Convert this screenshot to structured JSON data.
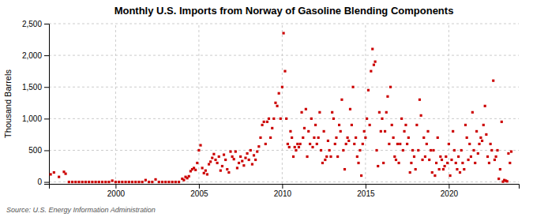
{
  "chart_data": {
    "type": "scatter",
    "title": "Monthly U.S. Imports from Norway of Gasoline Blending Components",
    "ylabel": "Thousand Barrels",
    "annotations": [
      "Source: U.S. Energy Information Administration"
    ],
    "color": "#cc0000",
    "marker": "square",
    "grid": true,
    "xlim": [
      1996.0,
      2024.2
    ],
    "ylim": [
      -30,
      2500
    ],
    "xticks": [
      2000,
      2005,
      2010,
      2015,
      2020
    ],
    "yticks": [
      0,
      500,
      {
        "value": 1000,
        "label": "1,000"
      },
      {
        "value": 1500,
        "label": "1,500"
      },
      {
        "value": 2000,
        "label": "2,000"
      },
      {
        "value": 2500,
        "label": "2,500"
      }
    ],
    "x": [
      1996.1,
      1996.3,
      1996.6,
      1996.9,
      1997.0,
      1997.2,
      1997.4,
      1997.6,
      1997.8,
      1998.0,
      1998.2,
      1998.4,
      1998.6,
      1998.8,
      1999.0,
      1999.2,
      1999.4,
      1999.6,
      1999.8,
      2000.0,
      2000.2,
      2000.4,
      2000.6,
      2000.8,
      2001.0,
      2001.2,
      2001.4,
      2001.6,
      2001.8,
      2002.0,
      2002.2,
      2002.4,
      2002.6,
      2002.8,
      2003.0,
      2003.2,
      2003.4,
      2003.6,
      2003.8,
      2004.0,
      2004.1,
      2004.2,
      2004.3,
      2004.4,
      2004.5,
      2004.6,
      2004.7,
      2004.8,
      2004.9,
      2005.0,
      2005.1,
      2005.2,
      2005.3,
      2005.4,
      2005.5,
      2005.6,
      2005.7,
      2005.8,
      2005.9,
      2006.0,
      2006.1,
      2006.2,
      2006.3,
      2006.4,
      2006.5,
      2006.6,
      2006.7,
      2006.8,
      2006.9,
      2007.0,
      2007.1,
      2007.2,
      2007.3,
      2007.4,
      2007.5,
      2007.6,
      2007.7,
      2007.8,
      2007.9,
      2008.0,
      2008.1,
      2008.2,
      2008.3,
      2008.4,
      2008.5,
      2008.6,
      2008.7,
      2008.8,
      2008.9,
      2009.0,
      2009.1,
      2009.2,
      2009.3,
      2009.4,
      2009.5,
      2009.6,
      2009.7,
      2009.8,
      2009.9,
      2010.0,
      2010.08,
      2010.17,
      2010.25,
      2010.33,
      2010.42,
      2010.5,
      2010.58,
      2010.67,
      2010.75,
      2010.83,
      2010.92,
      2011.0,
      2011.08,
      2011.17,
      2011.25,
      2011.33,
      2011.42,
      2011.5,
      2011.58,
      2011.67,
      2011.75,
      2011.83,
      2011.92,
      2012.0,
      2012.08,
      2012.17,
      2012.25,
      2012.33,
      2012.42,
      2012.5,
      2012.58,
      2012.67,
      2012.75,
      2012.83,
      2012.92,
      2013.0,
      2013.08,
      2013.17,
      2013.25,
      2013.33,
      2013.42,
      2013.5,
      2013.58,
      2013.67,
      2013.75,
      2013.83,
      2013.92,
      2014.0,
      2014.08,
      2014.17,
      2014.25,
      2014.33,
      2014.42,
      2014.5,
      2014.58,
      2014.67,
      2014.75,
      2014.83,
      2014.92,
      2015.0,
      2015.08,
      2015.17,
      2015.25,
      2015.33,
      2015.42,
      2015.5,
      2015.58,
      2015.67,
      2015.75,
      2015.83,
      2015.92,
      2016.0,
      2016.08,
      2016.17,
      2016.25,
      2016.33,
      2016.42,
      2016.5,
      2016.58,
      2016.67,
      2016.75,
      2016.83,
      2016.92,
      2017.0,
      2017.08,
      2017.17,
      2017.25,
      2017.33,
      2017.42,
      2017.5,
      2017.58,
      2017.67,
      2017.75,
      2017.83,
      2017.92,
      2018.0,
      2018.08,
      2018.17,
      2018.25,
      2018.33,
      2018.42,
      2018.5,
      2018.58,
      2018.67,
      2018.75,
      2018.83,
      2018.92,
      2019.0,
      2019.08,
      2019.17,
      2019.25,
      2019.33,
      2019.42,
      2019.5,
      2019.58,
      2019.67,
      2019.75,
      2019.83,
      2019.92,
      2020.0,
      2020.08,
      2020.17,
      2020.25,
      2020.33,
      2020.42,
      2020.5,
      2020.58,
      2020.67,
      2020.75,
      2020.83,
      2020.92,
      2021.0,
      2021.08,
      2021.17,
      2021.25,
      2021.33,
      2021.42,
      2021.5,
      2021.58,
      2021.67,
      2021.75,
      2021.83,
      2021.92,
      2022.0,
      2022.08,
      2022.17,
      2022.25,
      2022.33,
      2022.42,
      2022.5,
      2022.58,
      2022.67,
      2022.75,
      2022.83,
      2022.92,
      2023.0,
      2023.08,
      2023.17,
      2023.25,
      2023.33,
      2023.42,
      2023.5,
      2023.58,
      2023.67,
      2023.75
    ],
    "values": [
      120,
      150,
      80,
      160,
      130,
      0,
      0,
      0,
      0,
      0,
      0,
      0,
      0,
      0,
      0,
      0,
      0,
      0,
      20,
      0,
      0,
      0,
      0,
      0,
      0,
      0,
      0,
      0,
      30,
      0,
      0,
      40,
      0,
      0,
      0,
      0,
      0,
      0,
      0,
      50,
      30,
      80,
      60,
      90,
      170,
      200,
      220,
      190,
      300,
      500,
      580,
      220,
      140,
      180,
      120,
      280,
      320,
      380,
      440,
      350,
      300,
      400,
      180,
      250,
      430,
      350,
      200,
      150,
      480,
      400,
      360,
      480,
      220,
      300,
      400,
      330,
      260,
      380,
      450,
      350,
      500,
      280,
      420,
      350,
      480,
      560,
      700,
      900,
      950,
      600,
      950,
      1000,
      700,
      850,
      1000,
      1250,
      1200,
      1400,
      1000,
      1500,
      2350,
      1750,
      1000,
      600,
      550,
      800,
      700,
      400,
      550,
      500,
      600,
      550,
      600,
      1100,
      700,
      850,
      1150,
      400,
      800,
      600,
      1000,
      550,
      700,
      900,
      600,
      700,
      1100,
      500,
      300,
      800,
      350,
      400,
      650,
      500,
      400,
      1100,
      1000,
      600,
      700,
      400,
      900,
      800,
      1300,
      500,
      200,
      600,
      700,
      650,
      1150,
      900,
      1500,
      600,
      700,
      400,
      300,
      500,
      100,
      600,
      800,
      700,
      1000,
      1450,
      900,
      1750,
      2100,
      1850,
      1900,
      500,
      250,
      1100,
      800,
      1000,
      300,
      800,
      1100,
      1350,
      600,
      1500,
      900,
      700,
      400,
      350,
      600,
      300,
      600,
      1000,
      500,
      800,
      900,
      600,
      700,
      150,
      300,
      500,
      400,
      200,
      900,
      500,
      1300,
      1050,
      350,
      700,
      400,
      600,
      800,
      350,
      500,
      150,
      500,
      100,
      300,
      700,
      200,
      400,
      350,
      200,
      250,
      400,
      300,
      600,
      100,
      350,
      800,
      500,
      300,
      200,
      400,
      150,
      500,
      300,
      200,
      900,
      700,
      350,
      600,
      400,
      1100,
      500,
      300,
      800,
      450,
      600,
      700,
      650,
      900,
      1200,
      750,
      400,
      300,
      600,
      500,
      1600,
      350,
      400,
      500,
      50,
      200,
      950,
      5,
      30,
      20,
      10,
      450,
      300,
      480
    ]
  }
}
